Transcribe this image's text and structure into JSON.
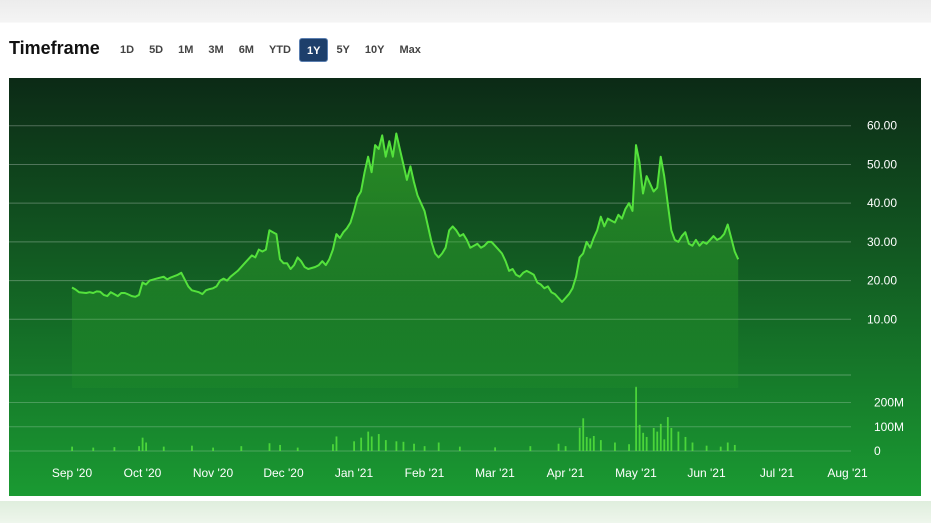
{
  "header": {
    "title": "Timeframe",
    "tabs": [
      "1D",
      "5D",
      "1M",
      "3M",
      "6M",
      "YTD",
      "1Y",
      "5Y",
      "10Y",
      "Max"
    ],
    "active_tab": "1Y"
  },
  "colors": {
    "line": "#54e23c",
    "bg_top": "#0c2a16",
    "bg_bottom": "#1a9a32",
    "active_tab": "#1d3f6b"
  },
  "chart_data": [
    {
      "type": "area",
      "x_ticks": [
        "Sep '20",
        "Oct '20",
        "Nov '20",
        "Dec '20",
        "Jan '21",
        "Feb '21",
        "Mar '21",
        "Apr '21",
        "May '21",
        "Jun '21",
        "Jul '21",
        "Aug '21"
      ],
      "y_ticks": [
        "60.00",
        "50.00",
        "40.00",
        "30.00",
        "20.00",
        "10.00"
      ],
      "ylim": [
        0,
        62
      ],
      "grid": true,
      "series": [
        {
          "values": [
            [
              0,
              18.2
            ],
            [
              0.05,
              17.7
            ],
            [
              0.1,
              17.0
            ],
            [
              0.15,
              16.9
            ],
            [
              0.2,
              16.8
            ],
            [
              0.25,
              17.0
            ],
            [
              0.3,
              16.8
            ],
            [
              0.35,
              17.2
            ],
            [
              0.4,
              17.1
            ],
            [
              0.45,
              16.3
            ],
            [
              0.5,
              16.0
            ],
            [
              0.55,
              17.0
            ],
            [
              0.6,
              16.5
            ],
            [
              0.65,
              16.0
            ],
            [
              0.7,
              16.8
            ],
            [
              0.75,
              16.8
            ],
            [
              0.8,
              16.4
            ],
            [
              0.85,
              16.0
            ],
            [
              0.9,
              15.8
            ],
            [
              0.95,
              16.3
            ],
            [
              1.0,
              19.5
            ],
            [
              1.05,
              19.0
            ],
            [
              1.1,
              20.0
            ],
            [
              1.2,
              20.5
            ],
            [
              1.3,
              21.0
            ],
            [
              1.35,
              20.3
            ],
            [
              1.4,
              20.8
            ],
            [
              1.5,
              21.5
            ],
            [
              1.55,
              22.0
            ],
            [
              1.65,
              18.5
            ],
            [
              1.7,
              17.5
            ],
            [
              1.8,
              17.0
            ],
            [
              1.85,
              16.5
            ],
            [
              1.9,
              17.5
            ],
            [
              1.95,
              17.8
            ],
            [
              2.0,
              18.0
            ],
            [
              2.05,
              18.5
            ],
            [
              2.1,
              20.0
            ],
            [
              2.15,
              20.5
            ],
            [
              2.2,
              20.0
            ],
            [
              2.25,
              21.0
            ],
            [
              2.35,
              22.5
            ],
            [
              2.45,
              24.5
            ],
            [
              2.55,
              26.5
            ],
            [
              2.6,
              26.0
            ],
            [
              2.65,
              28.0
            ],
            [
              2.7,
              27.5
            ],
            [
              2.75,
              28.0
            ],
            [
              2.8,
              33.0
            ],
            [
              2.85,
              32.5
            ],
            [
              2.9,
              32.0
            ],
            [
              2.95,
              25.5
            ],
            [
              3.0,
              24.5
            ],
            [
              3.05,
              24.5
            ],
            [
              3.1,
              23.0
            ],
            [
              3.15,
              24.0
            ],
            [
              3.2,
              26.0
            ],
            [
              3.25,
              25.0
            ],
            [
              3.3,
              23.5
            ],
            [
              3.35,
              23.0
            ],
            [
              3.45,
              23.5
            ],
            [
              3.5,
              24.0
            ],
            [
              3.55,
              25.0
            ],
            [
              3.6,
              24.0
            ],
            [
              3.65,
              25.5
            ],
            [
              3.7,
              28.0
            ],
            [
              3.75,
              32.0
            ],
            [
              3.8,
              31.0
            ],
            [
              3.85,
              32.5
            ],
            [
              3.9,
              33.5
            ],
            [
              3.95,
              35.0
            ],
            [
              4.0,
              38.0
            ],
            [
              4.05,
              41.5
            ],
            [
              4.1,
              43.0
            ],
            [
              4.15,
              48.0
            ],
            [
              4.2,
              52.0
            ],
            [
              4.25,
              48.0
            ],
            [
              4.3,
              55.0
            ],
            [
              4.35,
              54.0
            ],
            [
              4.4,
              57.5
            ],
            [
              4.45,
              52.0
            ],
            [
              4.5,
              56.0
            ],
            [
              4.55,
              52.0
            ],
            [
              4.6,
              58.0
            ],
            [
              4.65,
              54.0
            ],
            [
              4.7,
              50.0
            ],
            [
              4.75,
              46.0
            ],
            [
              4.8,
              49.5
            ],
            [
              4.85,
              45.5
            ],
            [
              4.9,
              42.0
            ],
            [
              4.95,
              40.0
            ],
            [
              5.0,
              38.0
            ],
            [
              5.05,
              34.0
            ],
            [
              5.1,
              30.0
            ],
            [
              5.15,
              27.0
            ],
            [
              5.2,
              26.0
            ],
            [
              5.25,
              27.0
            ],
            [
              5.3,
              28.5
            ],
            [
              5.35,
              33.0
            ],
            [
              5.4,
              34.0
            ],
            [
              5.45,
              33.0
            ],
            [
              5.5,
              31.5
            ],
            [
              5.55,
              32.0
            ],
            [
              5.6,
              30.5
            ],
            [
              5.65,
              28.5
            ],
            [
              5.7,
              29.0
            ],
            [
              5.75,
              29.5
            ],
            [
              5.8,
              28.5
            ],
            [
              5.85,
              29.0
            ],
            [
              5.9,
              30.0
            ],
            [
              5.95,
              30.0
            ],
            [
              6.0,
              29.0
            ],
            [
              6.05,
              28.0
            ],
            [
              6.1,
              27.0
            ],
            [
              6.15,
              25.0
            ],
            [
              6.2,
              22.5
            ],
            [
              6.25,
              23.0
            ],
            [
              6.3,
              21.5
            ],
            [
              6.35,
              21.0
            ],
            [
              6.4,
              22.0
            ],
            [
              6.45,
              22.5
            ],
            [
              6.5,
              22.0
            ],
            [
              6.55,
              21.5
            ],
            [
              6.6,
              19.5
            ],
            [
              6.65,
              19.0
            ],
            [
              6.7,
              18.0
            ],
            [
              6.75,
              18.5
            ],
            [
              6.8,
              17.0
            ],
            [
              6.85,
              16.5
            ],
            [
              6.9,
              15.5
            ],
            [
              6.95,
              14.5
            ],
            [
              7.0,
              15.5
            ],
            [
              7.05,
              16.5
            ],
            [
              7.1,
              18.0
            ],
            [
              7.15,
              21.0
            ],
            [
              7.2,
              26.0
            ],
            [
              7.25,
              27.0
            ],
            [
              7.3,
              30.0
            ],
            [
              7.35,
              28.5
            ],
            [
              7.4,
              31.0
            ],
            [
              7.45,
              33.0
            ],
            [
              7.5,
              36.5
            ],
            [
              7.55,
              34.0
            ],
            [
              7.6,
              36.0
            ],
            [
              7.65,
              35.5
            ],
            [
              7.7,
              35.0
            ],
            [
              7.75,
              37.0
            ],
            [
              7.8,
              36.0
            ],
            [
              7.85,
              38.5
            ],
            [
              7.9,
              40.0
            ],
            [
              7.95,
              38.0
            ],
            [
              8.0,
              55.0
            ],
            [
              8.05,
              50.5
            ],
            [
              8.1,
              42.5
            ],
            [
              8.15,
              47.0
            ],
            [
              8.2,
              45.0
            ],
            [
              8.25,
              43.0
            ],
            [
              8.3,
              44.0
            ],
            [
              8.35,
              52.0
            ],
            [
              8.4,
              47.0
            ],
            [
              8.45,
              40.0
            ],
            [
              8.5,
              33.0
            ],
            [
              8.55,
              30.5
            ],
            [
              8.6,
              30.0
            ],
            [
              8.65,
              31.5
            ],
            [
              8.7,
              32.5
            ],
            [
              8.75,
              29.5
            ],
            [
              8.8,
              29.0
            ],
            [
              8.85,
              30.5
            ],
            [
              8.9,
              29.0
            ],
            [
              8.95,
              30.0
            ],
            [
              9.0,
              29.5
            ],
            [
              9.05,
              30.5
            ],
            [
              9.1,
              31.5
            ],
            [
              9.15,
              30.5
            ],
            [
              9.2,
              31.0
            ],
            [
              9.25,
              32.0
            ],
            [
              9.3,
              34.5
            ],
            [
              9.35,
              31.0
            ],
            [
              9.4,
              27.5
            ],
            [
              9.45,
              25.5
            ]
          ]
        },
        {
          "name": "volume",
          "y_ticks": [
            "200M",
            "100M",
            "0"
          ],
          "ylim": [
            0,
            260
          ],
          "values": [
            [
              0.0,
              18
            ],
            [
              0.3,
              14
            ],
            [
              0.6,
              16
            ],
            [
              0.95,
              20
            ],
            [
              1.0,
              55
            ],
            [
              1.05,
              35
            ],
            [
              1.3,
              18
            ],
            [
              1.7,
              22
            ],
            [
              2.0,
              14
            ],
            [
              2.4,
              20
            ],
            [
              2.8,
              32
            ],
            [
              2.95,
              25
            ],
            [
              3.2,
              14
            ],
            [
              3.7,
              28
            ],
            [
              3.75,
              60
            ],
            [
              4.0,
              40
            ],
            [
              4.1,
              55
            ],
            [
              4.2,
              80
            ],
            [
              4.25,
              60
            ],
            [
              4.35,
              70
            ],
            [
              4.45,
              45
            ],
            [
              4.6,
              40
            ],
            [
              4.7,
              38
            ],
            [
              4.85,
              30
            ],
            [
              5.0,
              20
            ],
            [
              5.2,
              35
            ],
            [
              5.5,
              18
            ],
            [
              6.0,
              15
            ],
            [
              6.5,
              20
            ],
            [
              6.9,
              30
            ],
            [
              7.0,
              20
            ],
            [
              7.2,
              96
            ],
            [
              7.25,
              135
            ],
            [
              7.3,
              58
            ],
            [
              7.35,
              52
            ],
            [
              7.4,
              62
            ],
            [
              7.5,
              45
            ],
            [
              7.7,
              35
            ],
            [
              7.9,
              28
            ],
            [
              8.0,
              265
            ],
            [
              8.05,
              108
            ],
            [
              8.1,
              75
            ],
            [
              8.15,
              58
            ],
            [
              8.25,
              95
            ],
            [
              8.3,
              80
            ],
            [
              8.35,
              112
            ],
            [
              8.4,
              48
            ],
            [
              8.45,
              140
            ],
            [
              8.5,
              95
            ],
            [
              8.6,
              80
            ],
            [
              8.7,
              58
            ],
            [
              8.8,
              35
            ],
            [
              9.0,
              22
            ],
            [
              9.2,
              18
            ],
            [
              9.3,
              35
            ],
            [
              9.4,
              25
            ]
          ]
        }
      ]
    }
  ]
}
